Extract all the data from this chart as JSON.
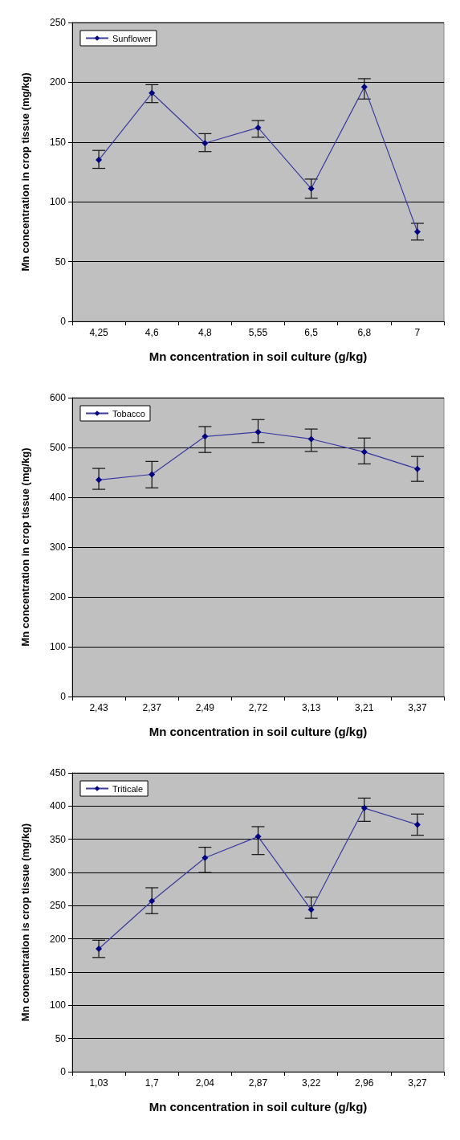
{
  "chart_data": [
    {
      "type": "line",
      "xlabel": "Mn concentration in soil culture (g/kg)",
      "ylabel": "Mn concentration in crop tissue (mg/kg)",
      "categories": [
        "4,25",
        "4,6",
        "4,8",
        "5,55",
        "6,5",
        "6,8",
        "7"
      ],
      "series": [
        {
          "name": "Sunflower",
          "color": "#3a3aa0",
          "values": [
            135,
            191,
            149,
            162,
            111,
            196,
            75
          ],
          "errors": [
            [
              128,
              143
            ],
            [
              183,
              198
            ],
            [
              142,
              157
            ],
            [
              154,
              168
            ],
            [
              103,
              119
            ],
            [
              186,
              203
            ],
            [
              68,
              82
            ]
          ]
        }
      ],
      "ylim": [
        0,
        250
      ],
      "yticks": [
        0,
        50,
        100,
        150,
        200,
        250
      ],
      "grid": "y",
      "legend": "top left",
      "marker": "diamond",
      "line_style": "solid"
    },
    {
      "type": "line",
      "xlabel": "Mn concentration in soil culture (g/kg)",
      "ylabel": "Mn concentration in crop tissue (mg/kg)",
      "categories": [
        "2,43",
        "2,37",
        "2,49",
        "2,72",
        "3,13",
        "3,21",
        "3,37"
      ],
      "series": [
        {
          "name": "Tobacco",
          "color": "#3a3aa0",
          "values": [
            435,
            446,
            522,
            531,
            517,
            491,
            457
          ],
          "errors": [
            [
              416,
              458
            ],
            [
              419,
              472
            ],
            [
              490,
              542
            ],
            [
              510,
              556
            ],
            [
              492,
              537
            ],
            [
              467,
              519
            ],
            [
              432,
              482
            ]
          ]
        }
      ],
      "ylim": [
        0,
        600
      ],
      "yticks": [
        0,
        100,
        200,
        300,
        400,
        500,
        600
      ],
      "grid": "y",
      "legend": "top left",
      "marker": "diamond",
      "line_style": "solid"
    },
    {
      "type": "line",
      "xlabel": "Mn concentration in soil culture (g/kg)",
      "ylabel": "Mn concentration is crop tissue (mg/kg)",
      "categories": [
        "1,03",
        "1,7",
        "2,04",
        "2,87",
        "3,22",
        "2,96",
        "3,27"
      ],
      "series": [
        {
          "name": "Triticale",
          "color": "#3a3aa0",
          "values": [
            185,
            257,
            322,
            354,
            244,
            397,
            372
          ],
          "errors": [
            [
              172,
              198
            ],
            [
              238,
              277
            ],
            [
              300,
              338
            ],
            [
              327,
              369
            ],
            [
              231,
              263
            ],
            [
              377,
              412
            ],
            [
              356,
              388
            ]
          ]
        }
      ],
      "ylim": [
        0,
        450
      ],
      "yticks": [
        0,
        50,
        100,
        150,
        200,
        250,
        300,
        350,
        400,
        450
      ],
      "grid": "y",
      "legend": "top left",
      "marker": "diamond",
      "line_style": "solid"
    }
  ]
}
